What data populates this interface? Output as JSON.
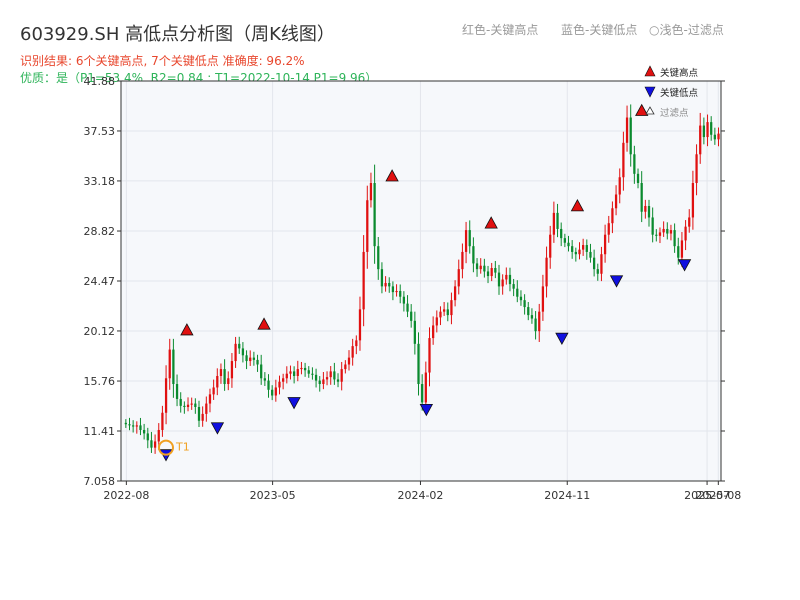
{
  "header": {
    "title": "603929.SH 高低点分析图（周K线图）",
    "hint_red": "红色-关键高点",
    "hint_blue": "蓝色-关键低点",
    "hint_light": "浅色-过滤点",
    "result_line": "识别结果: 6个关键高点, 7个关键低点   准确度: 96.2%",
    "quality_line": "优质：是（P1=53.4%, R2=0.84 ; T1=2022-10-14 P1=9.96）"
  },
  "legend": {
    "high": "关键高点",
    "low": "关键低点",
    "filtered": "过滤点"
  },
  "colors": {
    "up": "#e01010",
    "down": "#0a8a2e",
    "high_marker": "#e01010",
    "low_marker": "#1010e0",
    "t1": "#f0a020",
    "plot_bg": "#f6f8fb",
    "grid": "#e3e6ec"
  },
  "chart_data": {
    "type": "candlestick",
    "title": "603929.SH 高低点分析图（周K线图）",
    "y_ticks": [
      "7.058",
      "11.41",
      "15.76",
      "20.12",
      "24.47",
      "28.82",
      "33.18",
      "37.53",
      "41.88"
    ],
    "ylim": [
      7.058,
      41.88
    ],
    "x_ticks": [
      "2022-08",
      "2023-05",
      "2024-02",
      "2024-11",
      "2025-07",
      "2025-08"
    ],
    "grid": true,
    "legend_position": "top-right",
    "key_highs": [
      {
        "date": "2022-11",
        "value": 19.6
      },
      {
        "date": "2023-04",
        "value": 20.1
      },
      {
        "date": "2023-12",
        "value": 33.0
      },
      {
        "date": "2024-06",
        "value": 28.9
      },
      {
        "date": "2024-11",
        "value": 30.4
      },
      {
        "date": "2025-03",
        "value": 38.7
      }
    ],
    "key_lows": [
      {
        "date": "2022-10",
        "value": 9.96
      },
      {
        "date": "2023-01",
        "value": 12.3
      },
      {
        "date": "2023-06",
        "value": 14.5
      },
      {
        "date": "2024-02",
        "value": 13.9
      },
      {
        "date": "2024-10",
        "value": 20.1
      },
      {
        "date": "2025-02",
        "value": 25.1
      },
      {
        "date": "2025-06",
        "value": 26.5
      }
    ],
    "t1": {
      "label": "T1",
      "date": "2022-10-14",
      "value": 9.96
    },
    "close_path": [
      12.0,
      11.9,
      11.8,
      11.9,
      11.5,
      11.2,
      10.6,
      9.96,
      10.5,
      11.5,
      13.0,
      16.0,
      18.5,
      15.5,
      14.2,
      13.6,
      13.5,
      13.7,
      13.8,
      13.5,
      12.3,
      12.9,
      13.8,
      14.6,
      15.2,
      16.2,
      16.8,
      15.5,
      16.0,
      17.5,
      19.0,
      18.6,
      18.0,
      17.5,
      17.8,
      17.6,
      17.2,
      16.0,
      15.8,
      15.0,
      14.5,
      15.2,
      15.7,
      16.0,
      16.4,
      16.6,
      16.2,
      16.8,
      16.9,
      16.7,
      16.4,
      16.3,
      15.8,
      15.5,
      15.9,
      16.1,
      16.6,
      15.9,
      15.7,
      16.8,
      17.2,
      17.8,
      18.8,
      19.3,
      22.0,
      27.0,
      31.5,
      33.0,
      27.5,
      25.5,
      24.0,
      24.3,
      24.0,
      23.5,
      23.6,
      23.1,
      22.5,
      21.8,
      21.0,
      19.0,
      15.5,
      13.9,
      16.5,
      19.5,
      20.6,
      21.3,
      21.8,
      22.0,
      21.5,
      22.8,
      24.0,
      25.5,
      27.0,
      28.9,
      27.5,
      26.0,
      25.5,
      25.8,
      25.3,
      24.9,
      25.6,
      25.2,
      24.0,
      24.6,
      25.0,
      24.2,
      23.8,
      23.1,
      22.8,
      22.2,
      21.5,
      21.2,
      20.1,
      21.8,
      24.0,
      26.5,
      28.5,
      30.4,
      29.0,
      28.2,
      27.8,
      27.5,
      27.0,
      26.8,
      27.2,
      27.6,
      27.0,
      26.5,
      25.5,
      25.1,
      26.8,
      28.5,
      29.5,
      30.8,
      32.0,
      33.5,
      36.5,
      38.7,
      35.5,
      33.8,
      33.0,
      30.5,
      31.0,
      30.0,
      28.5,
      28.4,
      28.7,
      29.0,
      28.6,
      28.9,
      27.5,
      26.5,
      28.0,
      29.2,
      30.0,
      33.0,
      35.5,
      38.0,
      37.0,
      38.3,
      37.2,
      36.8,
      37.3
    ]
  }
}
